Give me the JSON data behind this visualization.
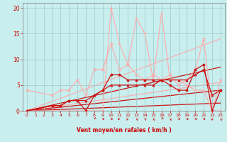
{
  "xlabel": "Vent moyen/en rafales ( km/h )",
  "xlim": [
    -0.5,
    23.5
  ],
  "ylim": [
    0,
    21
  ],
  "xticks": [
    0,
    1,
    2,
    3,
    4,
    5,
    6,
    7,
    8,
    9,
    10,
    11,
    12,
    13,
    14,
    15,
    16,
    17,
    18,
    19,
    20,
    21,
    22,
    23
  ],
  "yticks": [
    0,
    5,
    10,
    15,
    20
  ],
  "bg_color": "#c8eeee",
  "grid_color": "#99cccc",
  "series": [
    {
      "x": [
        0,
        3,
        4,
        5,
        6,
        7,
        8,
        9,
        10,
        11,
        12,
        13,
        14,
        15,
        16,
        17,
        18,
        19,
        20,
        21,
        22,
        23
      ],
      "y": [
        4,
        3,
        4,
        4,
        6,
        3,
        8,
        8,
        13,
        8,
        9,
        7,
        6,
        7,
        6,
        7,
        5,
        6,
        8,
        14,
        0,
        6
      ],
      "color": "#ffaaaa",
      "linewidth": 0.8,
      "marker": "x",
      "markersize": 3,
      "zorder": 2
    },
    {
      "x": [
        0,
        3,
        9,
        10,
        11,
        12,
        13,
        14,
        15,
        16,
        17,
        18,
        19,
        20,
        21,
        22,
        23
      ],
      "y": [
        0,
        0,
        0,
        20,
        13,
        9,
        18,
        15,
        6,
        19,
        6,
        6,
        5,
        4,
        4,
        0,
        0
      ],
      "color": "#ffaaaa",
      "linewidth": 0.8,
      "marker": "+",
      "markersize": 3,
      "zorder": 2
    },
    {
      "x": [
        0,
        3,
        4,
        5,
        6,
        7,
        8,
        9,
        10,
        11,
        12,
        13,
        14,
        15,
        16,
        17,
        18,
        19,
        20,
        21,
        22,
        23
      ],
      "y": [
        0,
        1,
        1,
        2,
        2,
        0,
        3,
        4,
        7,
        7,
        6,
        6,
        6,
        6,
        6,
        5,
        4,
        4,
        8,
        9,
        0,
        4
      ],
      "color": "#cc1111",
      "linewidth": 0.9,
      "marker": "o",
      "markersize": 2.0,
      "zorder": 3
    },
    {
      "x": [
        0,
        3,
        4,
        5,
        6,
        7,
        8,
        9,
        10,
        11,
        12,
        13,
        14,
        15,
        16,
        17,
        18,
        19,
        20,
        21,
        22,
        23
      ],
      "y": [
        0,
        1,
        1,
        2,
        2,
        2,
        3,
        4,
        5,
        5,
        5,
        5,
        5,
        5,
        6,
        6,
        6,
        6,
        7,
        8,
        3,
        4
      ],
      "color": "#cc1111",
      "linewidth": 0.9,
      "marker": "^",
      "markersize": 2.0,
      "zorder": 3
    },
    {
      "x": [
        0,
        23
      ],
      "y": [
        0,
        14
      ],
      "color": "#ffaaaa",
      "linewidth": 0.8,
      "marker": null,
      "markersize": 0,
      "zorder": 1
    },
    {
      "x": [
        0,
        23
      ],
      "y": [
        0,
        5.5
      ],
      "color": "#ffaaaa",
      "linewidth": 0.8,
      "marker": null,
      "markersize": 0,
      "zorder": 1
    },
    {
      "x": [
        0,
        23
      ],
      "y": [
        0,
        8.5
      ],
      "color": "#cc1111",
      "linewidth": 0.9,
      "marker": null,
      "markersize": 0,
      "zorder": 1
    },
    {
      "x": [
        0,
        23
      ],
      "y": [
        0,
        4.0
      ],
      "color": "#cc1111",
      "linewidth": 0.9,
      "marker": null,
      "markersize": 0,
      "zorder": 1
    },
    {
      "x": [
        0,
        23
      ],
      "y": [
        0,
        1.5
      ],
      "color": "#cc1111",
      "linewidth": 0.9,
      "marker": null,
      "markersize": 0,
      "zorder": 1
    }
  ],
  "wind_arrows": {
    "x_positions": [
      8,
      9,
      10,
      11,
      12,
      13,
      14,
      15,
      16,
      17,
      18,
      19,
      20,
      21,
      22,
      23
    ],
    "directions_deg": [
      225,
      270,
      270,
      90,
      60,
      315,
      300,
      315,
      225,
      315,
      270,
      270,
      270,
      270,
      180,
      315
    ]
  }
}
